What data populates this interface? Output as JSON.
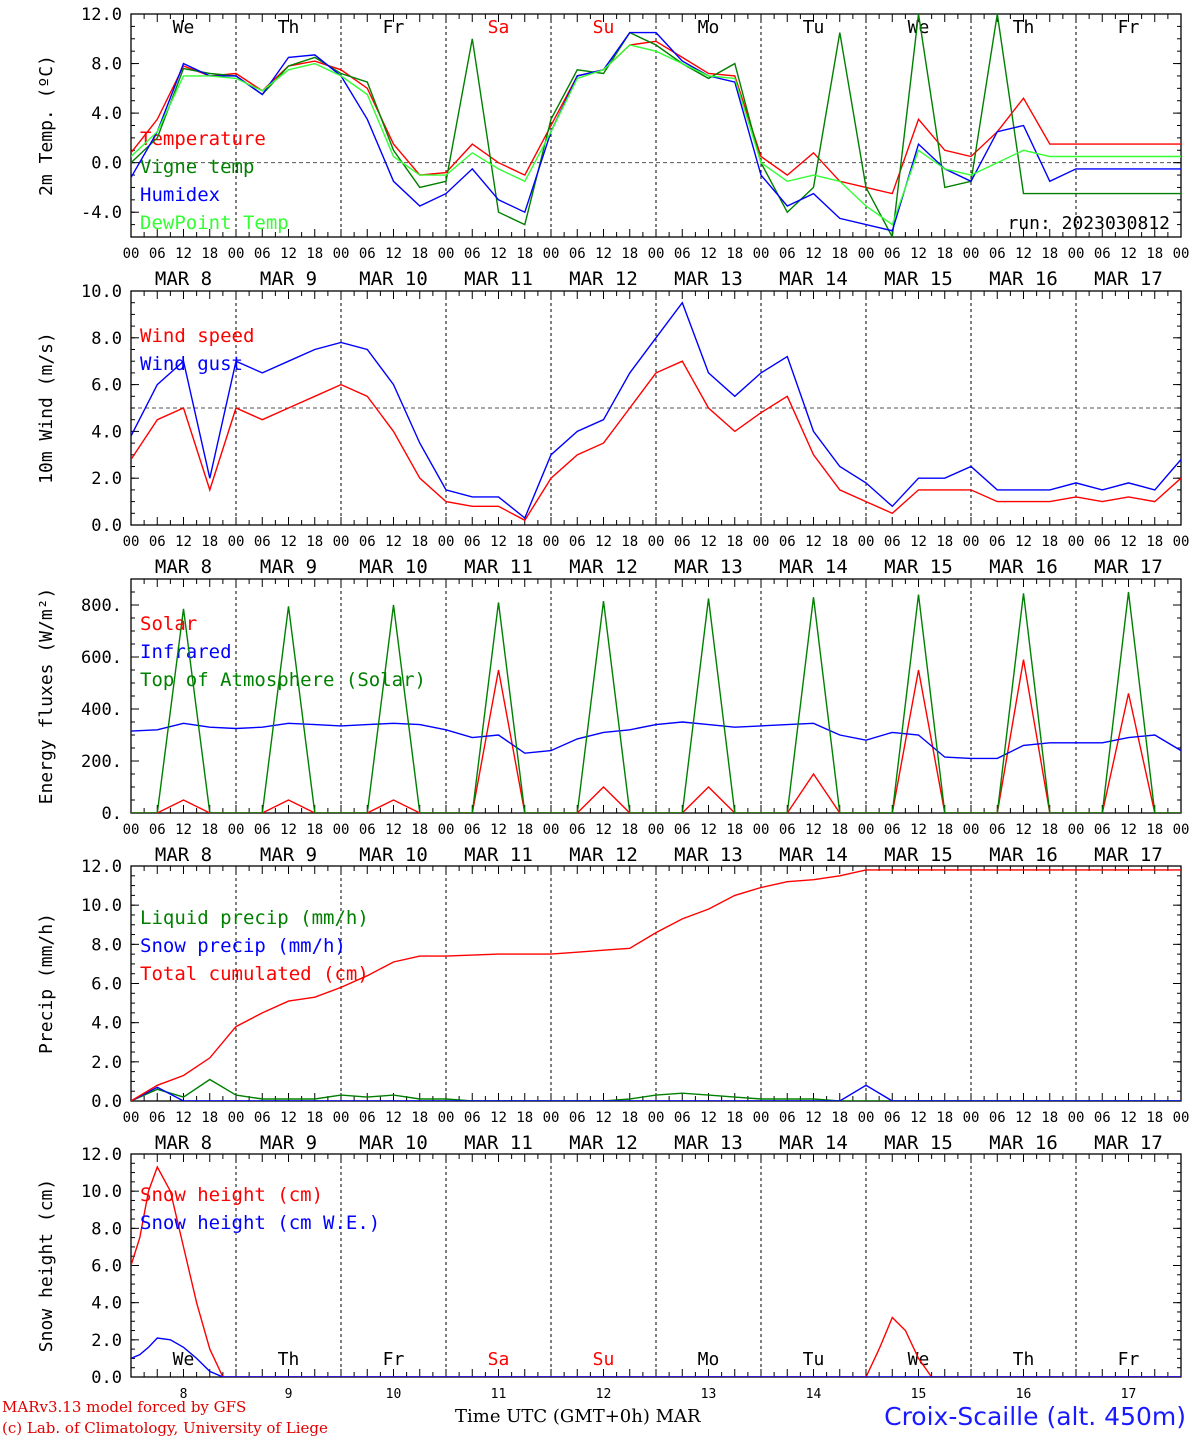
{
  "run_label": "run: 2023030812",
  "footer": {
    "model": "MARv3.13 model forced by GFS",
    "lab": "(c) Lab. of Climatology, University of Liege",
    "xlabel": "Time UTC (GMT+0h) MAR",
    "station": "Croix-Scaille (alt. 450m)"
  },
  "colors": {
    "red": "#ff0000",
    "green": "#008000",
    "blue": "#0000ff",
    "lightgreen": "#33ff33",
    "grey": "#555555"
  },
  "days": {
    "weekday_labels": [
      "We",
      "Th",
      "Fr",
      "Sa",
      "Su",
      "Mo",
      "Tu",
      "We",
      "Th",
      "Fr"
    ],
    "weekend_flags": [
      false,
      false,
      false,
      true,
      true,
      false,
      false,
      false,
      false,
      false
    ],
    "date_labels": [
      "MAR  8",
      "MAR  9",
      "MAR 10",
      "MAR 11",
      "MAR 12",
      "MAR 13",
      "MAR 14",
      "MAR 15",
      "MAR 16",
      "MAR 17"
    ],
    "hour_labels": [
      "00",
      "06",
      "12",
      "18"
    ],
    "final_hour_label": "00",
    "bottom_day_numbers": [
      "8",
      "9",
      "10",
      "11",
      "12",
      "13",
      "14",
      "15",
      "16",
      "17"
    ]
  },
  "chart_data": [
    {
      "type": "line",
      "ylabel": "2m Temp. (ºC)",
      "ylim": [
        -6,
        12
      ],
      "yticks": [
        "12.0",
        "8.0",
        "4.0",
        "0.0",
        "-4.0"
      ],
      "ytick_values": [
        12,
        8,
        4,
        0,
        -4
      ],
      "ref_line": 0,
      "x_hours": [
        0,
        6,
        12,
        18,
        24,
        30,
        36,
        42,
        48,
        54,
        60,
        66,
        72,
        78,
        84,
        90,
        96,
        102,
        108,
        114,
        120,
        126,
        132,
        138,
        144,
        150,
        156,
        162,
        168,
        174,
        180,
        186,
        192,
        198,
        204,
        210,
        216,
        222,
        228,
        234,
        240
      ],
      "series": [
        {
          "name": "Temperature",
          "color": "#ff0000",
          "values": [
            0.8,
            3.5,
            7.8,
            7.0,
            7.2,
            5.8,
            7.8,
            8.2,
            7.5,
            6.0,
            1.5,
            -1.0,
            -0.8,
            1.5,
            0.0,
            -1.0,
            3.0,
            7.0,
            7.5,
            9.5,
            9.8,
            8.5,
            7.2,
            7.0,
            0.5,
            -1.0,
            0.8,
            -1.5,
            -2.0,
            -2.5,
            3.5,
            1.0,
            0.5,
            2.5,
            5.2,
            1.5,
            1.5,
            1.5,
            1.5,
            1.5,
            1.5
          ]
        },
        {
          "name": "Vigne temp",
          "color": "#008000",
          "values": [
            0.0,
            2.0,
            7.6,
            7.2,
            7.0,
            5.5,
            7.8,
            8.5,
            7.2,
            6.5,
            1.0,
            -2.0,
            -1.5,
            10.0,
            -4.0,
            -5.0,
            3.5,
            7.5,
            7.2,
            10.5,
            9.5,
            8.0,
            6.8,
            8.0,
            0.0,
            -4.0,
            -2.0,
            10.5,
            -2.0,
            -6.0,
            12.0,
            -2.0,
            -1.5,
            12.0,
            -2.5,
            -2.5,
            -2.5,
            -2.5,
            -2.5,
            -2.5,
            -2.5
          ]
        },
        {
          "name": "Humidex",
          "color": "#0000ff",
          "values": [
            -1.2,
            2.5,
            8.0,
            7.0,
            7.0,
            5.5,
            8.5,
            8.7,
            7.0,
            3.5,
            -1.5,
            -3.5,
            -2.5,
            -0.5,
            -3.0,
            -4.0,
            2.5,
            7.0,
            7.5,
            10.5,
            10.5,
            8.2,
            7.0,
            6.5,
            -1.0,
            -3.5,
            -2.5,
            -4.5,
            -5.0,
            -5.5,
            1.5,
            -0.5,
            -1.5,
            2.5,
            3.0,
            -1.5,
            -0.5,
            -0.5,
            -0.5,
            -0.5,
            -0.5
          ]
        },
        {
          "name": "DewPoint Temp",
          "color": "#33ff33",
          "values": [
            0.5,
            2.5,
            7.0,
            7.0,
            6.8,
            5.8,
            7.5,
            8.0,
            7.0,
            5.5,
            0.5,
            -1.0,
            -1.0,
            0.8,
            -0.5,
            -1.5,
            2.5,
            6.8,
            7.5,
            9.5,
            9.0,
            8.0,
            7.0,
            6.8,
            0.0,
            -1.5,
            -1.0,
            -1.5,
            -3.5,
            -5.0,
            1.0,
            -0.5,
            -1.0,
            0.0,
            1.0,
            0.5,
            0.5,
            0.5,
            0.5,
            0.5,
            0.5
          ]
        }
      ]
    },
    {
      "type": "line",
      "ylabel": "10m Wind (m/s)",
      "ylim": [
        0,
        10
      ],
      "yticks": [
        "10.0",
        "8.0",
        "6.0",
        "4.0",
        "2.0",
        "0.0"
      ],
      "ytick_values": [
        10,
        8,
        6,
        4,
        2,
        0
      ],
      "ref_line": 5,
      "x_hours": [
        0,
        6,
        12,
        18,
        24,
        30,
        36,
        42,
        48,
        54,
        60,
        66,
        72,
        78,
        84,
        90,
        96,
        102,
        108,
        114,
        120,
        126,
        132,
        138,
        144,
        150,
        156,
        162,
        168,
        174,
        180,
        186,
        192,
        198,
        204,
        210,
        216,
        222,
        228,
        234,
        240
      ],
      "series": [
        {
          "name": "Wind speed",
          "color": "#ff0000",
          "values": [
            2.8,
            4.5,
            5.0,
            1.5,
            5.0,
            4.5,
            5.0,
            5.5,
            6.0,
            5.5,
            4.0,
            2.0,
            1.0,
            0.8,
            0.8,
            0.2,
            2.0,
            3.0,
            3.5,
            5.0,
            6.5,
            7.0,
            5.0,
            4.0,
            4.8,
            5.5,
            3.0,
            1.5,
            1.0,
            0.5,
            1.5,
            1.5,
            1.5,
            1.0,
            1.0,
            1.0,
            1.2,
            1.0,
            1.2,
            1.0,
            2.0
          ]
        },
        {
          "name": "Wind gust",
          "color": "#0000ff",
          "values": [
            3.8,
            6.0,
            7.0,
            2.0,
            7.0,
            6.5,
            7.0,
            7.5,
            7.8,
            7.5,
            6.0,
            3.5,
            1.5,
            1.2,
            1.2,
            0.3,
            3.0,
            4.0,
            4.5,
            6.5,
            8.0,
            9.5,
            6.5,
            5.5,
            6.5,
            7.2,
            4.0,
            2.5,
            1.8,
            0.8,
            2.0,
            2.0,
            2.5,
            1.5,
            1.5,
            1.5,
            1.8,
            1.5,
            1.8,
            1.5,
            2.8
          ]
        }
      ]
    },
    {
      "type": "line",
      "ylabel": "Energy fluxes (W/m²)",
      "ylim": [
        0,
        900
      ],
      "yticks": [
        "800.",
        "600.",
        "400.",
        "200.",
        "0."
      ],
      "ytick_values": [
        800,
        600,
        400,
        200,
        0
      ],
      "ref_line": null,
      "x_hours": [
        0,
        6,
        12,
        18,
        24,
        30,
        36,
        42,
        48,
        54,
        60,
        66,
        72,
        78,
        84,
        90,
        96,
        102,
        108,
        114,
        120,
        126,
        132,
        138,
        144,
        150,
        156,
        162,
        168,
        174,
        180,
        186,
        192,
        198,
        204,
        210,
        216,
        222,
        228,
        234,
        240
      ],
      "series": [
        {
          "name": "Solar",
          "color": "#ff0000",
          "values": [
            0,
            0,
            50,
            0,
            0,
            0,
            50,
            0,
            0,
            0,
            50,
            0,
            0,
            0,
            550,
            0,
            0,
            0,
            100,
            0,
            0,
            0,
            100,
            0,
            0,
            0,
            150,
            0,
            0,
            0,
            550,
            0,
            0,
            0,
            590,
            0,
            0,
            0,
            460,
            0,
            0
          ]
        },
        {
          "name": "Infrared",
          "color": "#0000ff",
          "values": [
            315,
            320,
            345,
            330,
            325,
            330,
            345,
            340,
            335,
            340,
            345,
            340,
            320,
            290,
            300,
            230,
            240,
            285,
            310,
            320,
            340,
            350,
            340,
            330,
            335,
            340,
            345,
            300,
            280,
            310,
            300,
            215,
            210,
            210,
            260,
            270,
            270,
            270,
            290,
            300,
            240
          ]
        },
        {
          "name": "Top of Atmosphere (Solar)",
          "color": "#008000",
          "values": [
            0,
            0,
            785,
            0,
            0,
            0,
            795,
            0,
            0,
            0,
            800,
            0,
            0,
            0,
            810,
            0,
            0,
            0,
            815,
            0,
            0,
            0,
            825,
            0,
            0,
            0,
            830,
            0,
            0,
            0,
            840,
            0,
            0,
            0,
            845,
            0,
            0,
            0,
            850,
            0,
            0
          ]
        }
      ]
    },
    {
      "type": "line",
      "ylabel": "Precip (mm/h)",
      "ylim": [
        0,
        12
      ],
      "yticks": [
        "12.0",
        "10.0",
        "8.0",
        "6.0",
        "4.0",
        "2.0",
        "0.0"
      ],
      "ytick_values": [
        12,
        10,
        8,
        6,
        4,
        2,
        0
      ],
      "ref_line": null,
      "x_hours": [
        0,
        6,
        12,
        18,
        24,
        30,
        36,
        42,
        48,
        54,
        60,
        66,
        72,
        78,
        84,
        90,
        96,
        102,
        108,
        114,
        120,
        126,
        132,
        138,
        144,
        150,
        156,
        162,
        168,
        174,
        180,
        186,
        192,
        198,
        204,
        210,
        216,
        222,
        228,
        234,
        240
      ],
      "series": [
        {
          "name": "Liquid precip (mm/h)",
          "color": "#008000",
          "values": [
            0,
            0.6,
            0.2,
            1.1,
            0.3,
            0.1,
            0.1,
            0.1,
            0.3,
            0.2,
            0.3,
            0.1,
            0.1,
            0,
            0,
            0,
            0,
            0,
            0,
            0.1,
            0.3,
            0.4,
            0.3,
            0.2,
            0.1,
            0.1,
            0.1,
            0,
            0,
            0,
            0,
            0,
            0,
            0,
            0,
            0,
            0,
            0,
            0,
            0,
            0
          ]
        },
        {
          "name": "Snow precip (mm/h)",
          "color": "#0000ff",
          "values": [
            0,
            0.7,
            0,
            0,
            0,
            0,
            0,
            0,
            0,
            0,
            0,
            0,
            0,
            0,
            0,
            0,
            0,
            0,
            0,
            0,
            0,
            0,
            0,
            0,
            0,
            0,
            0,
            0,
            0.8,
            0,
            0,
            0,
            0,
            0,
            0,
            0,
            0,
            0,
            0,
            0,
            0
          ]
        },
        {
          "name": "Total cumulated (cm)",
          "color": "#ff0000",
          "values": [
            0,
            0.8,
            1.3,
            2.2,
            3.8,
            4.5,
            5.1,
            5.3,
            5.8,
            6.4,
            7.1,
            7.4,
            7.4,
            7.45,
            7.5,
            7.5,
            7.5,
            7.6,
            7.7,
            7.8,
            8.6,
            9.3,
            9.8,
            10.5,
            10.9,
            11.2,
            11.3,
            11.5,
            11.8,
            11.8,
            11.8,
            11.8,
            11.8,
            11.8,
            11.8,
            11.8,
            11.8,
            11.8,
            11.8,
            11.8,
            11.8
          ]
        }
      ]
    },
    {
      "type": "line",
      "ylabel": "Snow height (cm)",
      "ylim": [
        0,
        12
      ],
      "yticks": [
        "12.0",
        "10.0",
        "8.0",
        "6.0",
        "4.0",
        "2.0",
        "0.0"
      ],
      "ytick_values": [
        12,
        10,
        8,
        6,
        4,
        2,
        0
      ],
      "ref_line": null,
      "x_hours": [
        0,
        2,
        4,
        6,
        9,
        12,
        15,
        18,
        21,
        24,
        60,
        96,
        120,
        168,
        171,
        174,
        177,
        180,
        183,
        186,
        240
      ],
      "series": [
        {
          "name": "Snow height (cm)",
          "color": "#ff0000",
          "values": [
            6.0,
            7.5,
            10.0,
            11.3,
            10.0,
            7.0,
            4.0,
            1.5,
            0,
            0,
            0,
            0,
            0,
            0,
            1.5,
            3.2,
            2.5,
            1.0,
            0,
            0,
            0
          ]
        },
        {
          "name": "Snow height (cm W.E.)",
          "color": "#0000ff",
          "values": [
            1.0,
            1.2,
            1.6,
            2.1,
            2.0,
            1.6,
            1.0,
            0.3,
            0,
            0,
            0,
            0,
            0,
            0,
            0,
            0,
            0,
            0,
            0,
            0,
            0
          ]
        }
      ]
    }
  ]
}
